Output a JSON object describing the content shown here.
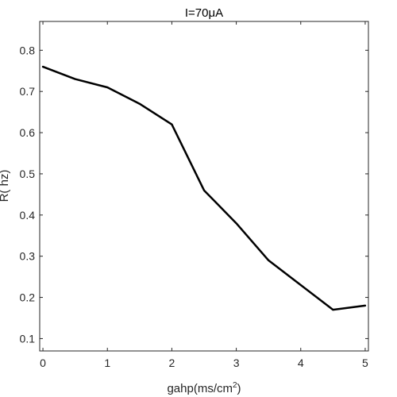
{
  "chart_data": {
    "type": "line",
    "title": "I=70μA",
    "xlabel": "gahp(ms/cm",
    "xlabel_sup": "2",
    "xlabel_end": ")",
    "ylabel": "R( hz)",
    "xlim": [
      -0.05,
      5.05
    ],
    "ylim": [
      0.07,
      0.87
    ],
    "x_ticks": [
      0,
      1,
      2,
      3,
      4,
      5
    ],
    "x_tick_labels": [
      "0",
      "1",
      "2",
      "3",
      "4",
      "5"
    ],
    "y_ticks": [
      0.1,
      0.2,
      0.3,
      0.4,
      0.5,
      0.6,
      0.7,
      0.8
    ],
    "y_tick_labels": [
      "0.1",
      "0.2",
      "0.3",
      "0.4",
      "0.5",
      "0.6",
      "0.7",
      "0.8"
    ],
    "grid": false,
    "series": [
      {
        "color": "#000000",
        "x": [
          0,
          0.5,
          1,
          1.5,
          2,
          2.5,
          3,
          3.5,
          4,
          4.5,
          5
        ],
        "y": [
          0.76,
          0.73,
          0.71,
          0.67,
          0.62,
          0.46,
          0.38,
          0.29,
          0.23,
          0.17,
          0.18
        ]
      }
    ]
  }
}
